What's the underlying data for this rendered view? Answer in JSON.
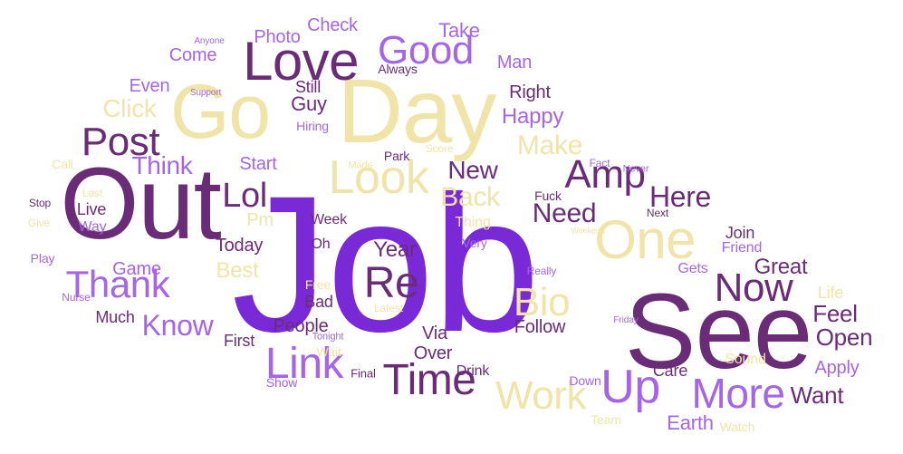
{
  "palette": {
    "violet": "#7a29d6",
    "plum": "#6a2c77",
    "lavender": "#a466e6",
    "cream": "#f0e4a8",
    "background": "#ffffff"
  },
  "words": [
    "Job",
    "See",
    "Out",
    "Day",
    "Go",
    "Love",
    "Look",
    "One",
    "Re",
    "Post",
    "Time",
    "Link",
    "Up",
    "More",
    "Now",
    "Amp",
    "Good",
    "Work",
    "Bio",
    "Thank",
    "Lol",
    "Here",
    "Make",
    "Know",
    "Back",
    "New",
    "Need",
    "Think",
    "Feel",
    "Open",
    "Want",
    "Click",
    "Happy",
    "Great",
    "Year",
    "Earth",
    "Apply",
    "Best",
    "Guy",
    "Photo",
    "Check",
    "Take",
    "Man",
    "Right",
    "Come",
    "Even",
    "Still",
    "Start",
    "Today",
    "Game",
    "Much",
    "People",
    "First",
    "Via",
    "Over",
    "Follow",
    "Drink",
    "Join",
    "Friend",
    "Gets",
    "Life",
    "Care",
    "Down",
    "Sound",
    "Watch",
    "Team",
    "Live",
    "Way",
    "Week",
    "Oh",
    "Bad",
    "Free",
    "Latest",
    "Tonight",
    "Wait",
    "Final",
    "Show",
    "Nurse",
    "Play",
    "Give",
    "Stop",
    "Last",
    "Call",
    "Made",
    "Park",
    "Score",
    "Hiring",
    "Support",
    "Anyone",
    "Always",
    "Fact",
    "Never",
    "Fuck",
    "Next",
    "Thing",
    "Very",
    "Really",
    "Weekend",
    "Friday",
    "Pm"
  ]
}
